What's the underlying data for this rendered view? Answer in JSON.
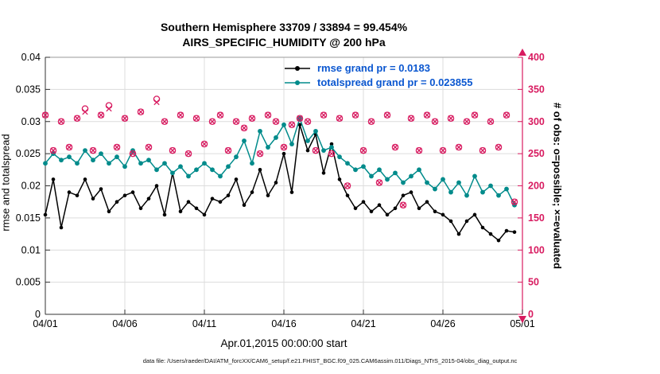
{
  "footer": "data file: /Users/raeder/DAI/ATM_forcXX/CAM6_setup/f.e21.FHIST_BGC.f09_025.CAM6assim.011/Diags_NTrS_2015-04/obs_diag_output.nc",
  "colors": {
    "legend_text": "#0b57d0",
    "obs": "#d81b60",
    "rmse": "#000000",
    "totalspread": "#008b8b",
    "grid": "#dcdcdc",
    "box": "#9a9a9a"
  },
  "chart_data": {
    "type": "line",
    "title": "Southern Hemisphere 33709 / 33894 = 99.454%",
    "subtitle": "AIRS_SPECIFIC_HUMIDITY @ 200 hPa",
    "xlabel": "Apr.01,2015 00:00:00 start",
    "grid": true,
    "legend_position": "top-center-inside",
    "left_axis": {
      "label": "rmse and totalspread",
      "lim": [
        0,
        0.04
      ],
      "tick_values": [
        0,
        0.005,
        0.01,
        0.015,
        0.02,
        0.025,
        0.03,
        0.035,
        0.04
      ],
      "tick_labels": [
        "0",
        "0.005",
        "0.01",
        "0.015",
        "0.02",
        "0.025",
        "0.03",
        "0.035",
        "0.04"
      ],
      "color": "#000000"
    },
    "right_axis": {
      "label": "# of obs: o=possible; ×=evaluated",
      "lim": [
        0,
        400
      ],
      "tick_values": [
        0,
        50,
        100,
        150,
        200,
        250,
        300,
        350,
        400
      ],
      "tick_labels": [
        "0",
        "50",
        "100",
        "150",
        "200",
        "250",
        "300",
        "350",
        "400"
      ],
      "color": "#d81b60"
    },
    "x_axis": {
      "lim": [
        0,
        30
      ],
      "tick_days": [
        0,
        5,
        10,
        15,
        20,
        25,
        30
      ],
      "tick_labels": [
        "04/01",
        "04/06",
        "04/11",
        "04/16",
        "04/21",
        "04/26",
        "05/01"
      ]
    },
    "legend": [
      {
        "label": "rmse grand pr = 0.0183",
        "color": "#000000"
      },
      {
        "label": "totalspread grand pr = 0.023855",
        "color": "#008b8b"
      }
    ],
    "x_days": [
      0,
      0.5,
      1,
      1.5,
      2,
      2.5,
      3,
      3.5,
      4,
      4.5,
      5,
      5.5,
      6,
      6.5,
      7,
      7.5,
      8,
      8.5,
      9,
      9.5,
      10,
      10.5,
      11,
      11.5,
      12,
      12.5,
      13,
      13.5,
      14,
      14.5,
      15,
      15.5,
      16,
      16.5,
      17,
      17.5,
      18,
      18.5,
      19,
      19.5,
      20,
      20.5,
      21,
      21.5,
      22,
      22.5,
      23,
      23.5,
      24,
      24.5,
      25,
      25.5,
      26,
      26.5,
      27,
      27.5,
      28,
      28.5,
      29,
      29.5
    ],
    "series": [
      {
        "name": "rmse",
        "axis": "left",
        "style": "line-dot",
        "color": "#000000",
        "values": [
          0.0155,
          0.021,
          0.0135,
          0.019,
          0.0185,
          0.021,
          0.018,
          0.0195,
          0.016,
          0.0175,
          0.0185,
          0.019,
          0.0165,
          0.018,
          0.02,
          0.0155,
          0.022,
          0.016,
          0.0175,
          0.0165,
          0.0155,
          0.018,
          0.0175,
          0.0185,
          0.021,
          0.017,
          0.019,
          0.0225,
          0.0185,
          0.0205,
          0.025,
          0.019,
          0.0295,
          0.0255,
          0.028,
          0.022,
          0.0265,
          0.021,
          0.0185,
          0.0165,
          0.0175,
          0.016,
          0.017,
          0.0155,
          0.0165,
          0.0185,
          0.019,
          0.0165,
          0.0175,
          0.016,
          0.0155,
          0.0145,
          0.0125,
          0.0145,
          0.0155,
          0.0135,
          0.0125,
          0.0115,
          0.013,
          0.0128
        ]
      },
      {
        "name": "totalspread",
        "axis": "left",
        "style": "line-dot",
        "color": "#008b8b",
        "values": [
          0.0235,
          0.025,
          0.024,
          0.0245,
          0.0235,
          0.0255,
          0.024,
          0.025,
          0.0235,
          0.0245,
          0.023,
          0.0255,
          0.0235,
          0.024,
          0.0225,
          0.0235,
          0.022,
          0.023,
          0.0215,
          0.0225,
          0.0235,
          0.0225,
          0.0215,
          0.023,
          0.0245,
          0.027,
          0.0235,
          0.0285,
          0.026,
          0.0275,
          0.0295,
          0.0265,
          0.0305,
          0.027,
          0.0285,
          0.0255,
          0.026,
          0.0245,
          0.0235,
          0.0225,
          0.023,
          0.0215,
          0.0225,
          0.021,
          0.022,
          0.0205,
          0.0215,
          0.0225,
          0.0205,
          0.0195,
          0.021,
          0.019,
          0.0205,
          0.0185,
          0.0215,
          0.019,
          0.02,
          0.0185,
          0.0195,
          0.017
        ]
      },
      {
        "name": "obs-possible",
        "axis": "right",
        "style": "circle",
        "color": "#d81b60",
        "values": [
          310,
          255,
          300,
          260,
          305,
          320,
          255,
          310,
          325,
          260,
          305,
          250,
          315,
          260,
          335,
          300,
          255,
          310,
          250,
          305,
          265,
          300,
          310,
          255,
          300,
          290,
          305,
          250,
          310,
          300,
          260,
          295,
          305,
          300,
          255,
          310,
          250,
          305,
          200,
          310,
          255,
          300,
          205,
          310,
          260,
          170,
          305,
          255,
          310,
          300,
          255,
          305,
          260,
          300,
          310,
          255,
          300,
          260,
          310,
          175
        ]
      },
      {
        "name": "obs-evaluated",
        "axis": "right",
        "style": "cross",
        "color": "#d81b60",
        "values": [
          310,
          255,
          300,
          260,
          305,
          315,
          255,
          310,
          320,
          260,
          305,
          250,
          315,
          260,
          330,
          300,
          255,
          310,
          250,
          305,
          265,
          300,
          310,
          255,
          300,
          290,
          305,
          250,
          310,
          300,
          260,
          295,
          305,
          300,
          255,
          310,
          250,
          305,
          200,
          310,
          255,
          300,
          205,
          310,
          260,
          170,
          305,
          255,
          310,
          300,
          255,
          305,
          260,
          300,
          310,
          255,
          300,
          260,
          310,
          175
        ]
      }
    ]
  }
}
